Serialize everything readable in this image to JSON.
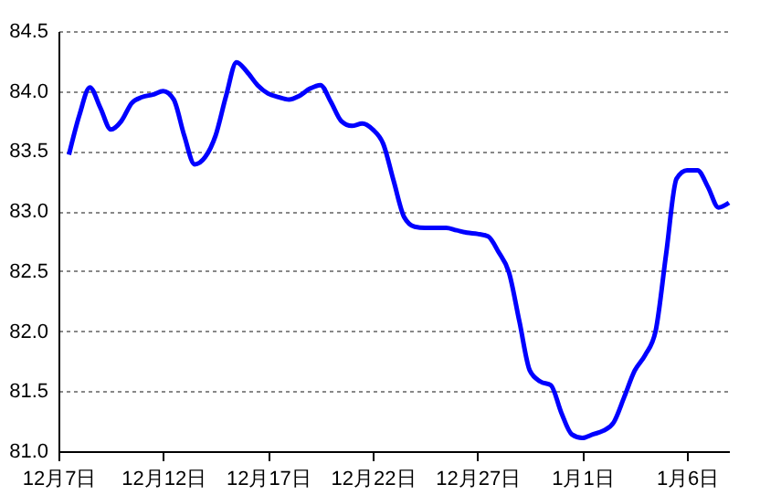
{
  "chart_data": {
    "type": "line",
    "categories": [
      "12月7日",
      null,
      null,
      null,
      null,
      null,
      null,
      null,
      null,
      null,
      "12月12日",
      null,
      null,
      null,
      null,
      null,
      null,
      null,
      null,
      null,
      "12月17日",
      null,
      null,
      null,
      null,
      null,
      null,
      null,
      null,
      null,
      "12月22日",
      null,
      null,
      null,
      null,
      null,
      null,
      null,
      null,
      null,
      "12月27日",
      null,
      null,
      null,
      null,
      null,
      null,
      null,
      null,
      null,
      "1月1日",
      null,
      null,
      null,
      null,
      null,
      null,
      null,
      null,
      null,
      "1月6日",
      null,
      null,
      null,
      null
    ],
    "series": [
      {
        "color": "#0000ff",
        "values": [
          null,
          83.47,
          83.8,
          84.03,
          83.86,
          83.68,
          83.75,
          83.9,
          83.95,
          83.97,
          84.0,
          83.93,
          83.63,
          83.39,
          83.45,
          83.63,
          83.96,
          84.24,
          84.16,
          84.05,
          83.98,
          83.95,
          83.93,
          83.96,
          84.02,
          84.05,
          83.91,
          83.75,
          83.71,
          83.73,
          83.68,
          83.56,
          83.25,
          82.95,
          82.87,
          82.86,
          82.86,
          82.86,
          82.84,
          82.82,
          82.81,
          82.79,
          82.66,
          82.49,
          82.08,
          81.67,
          81.58,
          81.55,
          81.32,
          81.14,
          81.11,
          81.14,
          81.17,
          81.24,
          81.45,
          81.67,
          81.8,
          82.0,
          82.64,
          83.27,
          83.34,
          83.34,
          83.2,
          83.03,
          83.07
        ]
      }
    ],
    "ylim": [
      81,
      84.5
    ],
    "yticks": [
      {
        "value": 81,
        "label": "81.0"
      },
      {
        "value": 81.5,
        "label": "81.5"
      },
      {
        "value": 82,
        "label": "82.0"
      },
      {
        "value": 82.5,
        "label": "82.5"
      },
      {
        "value": 83,
        "label": "83.0"
      },
      {
        "value": 83.5,
        "label": "83.5"
      },
      {
        "value": 84,
        "label": "84.0"
      },
      {
        "value": 84.5,
        "label": "84.5"
      }
    ],
    "grid": "y",
    "legend": false,
    "marker": "none",
    "line_style": "solid"
  }
}
